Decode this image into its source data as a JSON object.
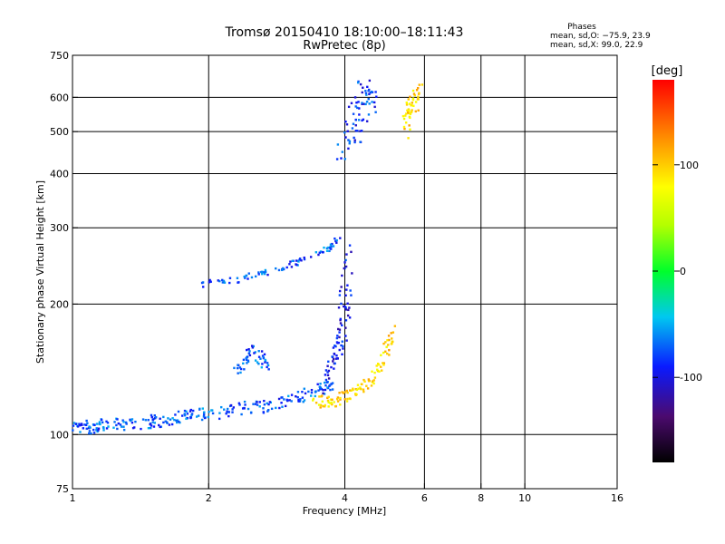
{
  "chart_data": {
    "type": "scatter",
    "title": "Tromsø 20150410 18:10:00–18:11:43",
    "subtitle": "RwPretec (8p)",
    "xlabel": "Frequency [MHz]",
    "ylabel": "Stationary phase Virtual Height [km]",
    "x_scale": "log",
    "y_scale": "log",
    "xlim": [
      1,
      16
    ],
    "ylim": [
      75,
      750
    ],
    "x_ticks": [
      1,
      2,
      4,
      6,
      8,
      10,
      16
    ],
    "y_ticks": [
      75,
      100,
      200,
      300,
      400,
      500,
      600,
      750
    ],
    "x_gridlines": [
      2,
      4,
      6,
      8,
      10
    ],
    "y_gridlines": [
      100,
      200,
      300,
      400,
      500,
      600
    ],
    "grid": true,
    "stats": {
      "heading": "Phases",
      "line_o": "mean, sd,O: −75.9, 23.9",
      "line_x": "mean, sd,X:  99.0, 22.9"
    },
    "colorbar": {
      "label": "[deg]",
      "range": [
        -180,
        180
      ],
      "ticks": [
        100,
        0,
        -100
      ]
    },
    "groups": [
      {
        "region": "low trace",
        "f": [
          1.0,
          1.05,
          1.1,
          1.15,
          1.2,
          1.3,
          1.4,
          1.5,
          1.6,
          1.7,
          1.8,
          1.9,
          2.0,
          2.2,
          2.4,
          2.6,
          2.8,
          3.0,
          3.2,
          3.4,
          3.6,
          3.8
        ],
        "h": [
          103,
          104,
          104,
          105,
          105,
          106,
          106,
          107,
          108,
          109,
          110,
          111,
          112,
          113,
          115,
          116,
          118,
          120,
          122,
          125,
          128,
          132
        ],
        "phase": -75,
        "spread": 0.03
      },
      {
        "region": "rising trace",
        "f": [
          3.6,
          3.7,
          3.8,
          3.9,
          3.95,
          4.0,
          4.02,
          4.05
        ],
        "h": [
          130,
          140,
          150,
          160,
          175,
          195,
          220,
          260
        ],
        "phase": -95,
        "spread": 0.05
      },
      {
        "region": "F trace",
        "f": [
          1.9,
          2.2,
          2.5,
          2.8,
          3.1,
          3.4,
          3.7,
          3.9
        ],
        "h": [
          222,
          225,
          232,
          240,
          248,
          257,
          270,
          285
        ],
        "phase": -75,
        "spread": 0.015
      },
      {
        "region": "X trace",
        "f": [
          3.4,
          3.6,
          3.8,
          4.0,
          4.2,
          4.4,
          4.6,
          4.8,
          5.0,
          5.1
        ],
        "h": [
          118,
          119,
          120,
          122,
          125,
          130,
          137,
          145,
          160,
          180
        ],
        "phase": 95,
        "spread": 0.03
      },
      {
        "region": "upper cluster",
        "f": [
          4.0,
          4.1,
          4.2,
          4.3,
          4.4,
          4.5,
          4.6
        ],
        "h": [
          450,
          480,
          520,
          560,
          600,
          620,
          520
        ],
        "phase": -85,
        "spread": 0.07
      },
      {
        "region": "upper cluster x",
        "f": [
          5.4,
          5.5,
          5.6,
          5.7,
          5.8
        ],
        "h": [
          500,
          530,
          560,
          590,
          620
        ],
        "phase": 95,
        "spread": 0.05
      },
      {
        "region": "2-2.5 bump",
        "f": [
          2.3,
          2.4,
          2.5,
          2.6,
          2.7
        ],
        "h": [
          140,
          148,
          155,
          150,
          142
        ],
        "phase": -75,
        "spread": 0.03
      }
    ]
  }
}
